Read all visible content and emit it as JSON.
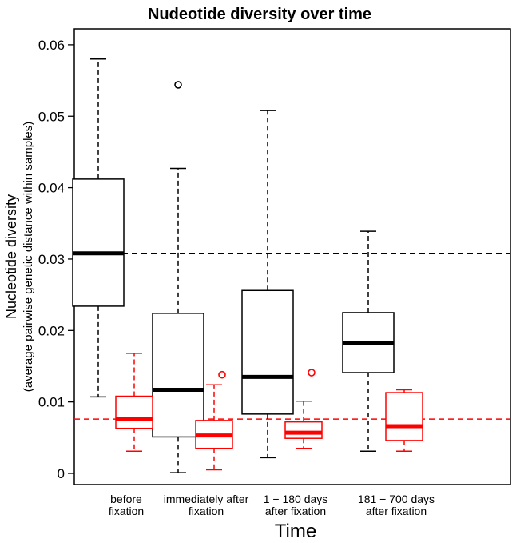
{
  "chart_data": {
    "type": "box",
    "title": "Nudeotide diversity over time",
    "xlabel": "Time",
    "ylabel": "Nucleotide diversity",
    "ylabel_sub": "(average pairwise genetic distance within samples)",
    "ylim": [
      0,
      0.0625
    ],
    "yticks": [
      0,
      0.01,
      0.02,
      0.03,
      0.04,
      0.05,
      0.06
    ],
    "ytick_labels": [
      "0",
      "0.01",
      "0.02",
      "0.03",
      "0.04",
      "0.05",
      "0.06"
    ],
    "categories": [
      [
        "before",
        "fixation"
      ],
      [
        "immediately after",
        "fixation"
      ],
      [
        "1 − 180 days",
        "after fixation"
      ],
      [
        "181 − 700 days",
        "after fixation"
      ]
    ],
    "series": [
      {
        "color": "#000000",
        "boxes": [
          {
            "min": 0.0107,
            "q1": 0.0234,
            "median": 0.0308,
            "q3": 0.0412,
            "max": 0.058,
            "outliers": []
          },
          {
            "min": 0.0001,
            "q1": 0.0051,
            "median": 0.0117,
            "q3": 0.0224,
            "max": 0.0427,
            "outliers": [
              0.0544
            ]
          },
          {
            "min": 0.0022,
            "q1": 0.0083,
            "median": 0.0135,
            "q3": 0.0256,
            "max": 0.0508,
            "outliers": []
          },
          {
            "min": 0.0031,
            "q1": 0.0141,
            "median": 0.0183,
            "q3": 0.0225,
            "max": 0.0339,
            "outliers": []
          }
        ]
      },
      {
        "color": "#ff0000",
        "boxes": [
          {
            "min": 0.0031,
            "q1": 0.0063,
            "median": 0.0076,
            "q3": 0.0108,
            "max": 0.0168,
            "outliers": []
          },
          {
            "min": 0.0005,
            "q1": 0.0035,
            "median": 0.0053,
            "q3": 0.0074,
            "max": 0.0124,
            "outliers": [
              0.0138
            ]
          },
          {
            "min": 0.0035,
            "q1": 0.0049,
            "median": 0.0057,
            "q3": 0.0072,
            "max": 0.0101,
            "outliers": [
              0.0141
            ]
          },
          {
            "min": 0.0031,
            "q1": 0.0046,
            "median": 0.0066,
            "q3": 0.0113,
            "max": 0.0117,
            "outliers": []
          }
        ]
      }
    ],
    "reference_lines": [
      {
        "y": 0.0308,
        "color": "#000000",
        "style": "dashed"
      },
      {
        "y": 0.0076,
        "color": "#ff0000",
        "style": "dashed"
      }
    ],
    "grid": false,
    "legend": "none"
  }
}
